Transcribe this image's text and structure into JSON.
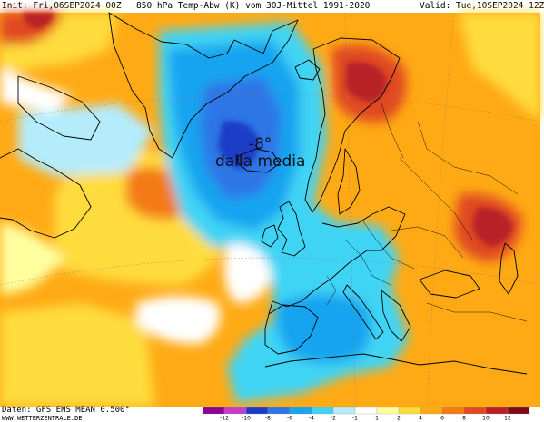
{
  "header": {
    "init_text": "Init: Fri,06SEP2024 00Z",
    "title_text": "850 hPa Temp-Abw (K) vom 30J-Mittel 1991-2020",
    "valid_text": "Valid: Tue,10SEP2024 12Z"
  },
  "overlay": {
    "anomaly_text": "-8°",
    "reference_text": "dalla media"
  },
  "footer": {
    "data_text": "Daten: GFS ENS MEAN 0.500°",
    "site_text": "WWW.WETTERZENTRALE.DE"
  },
  "colorbar": {
    "labels": [
      "-12",
      "-10",
      "-8",
      "-6",
      "-4",
      "-2",
      "-1",
      "1",
      "2",
      "4",
      "6",
      "8",
      "10",
      "12"
    ],
    "colors": {
      "bin_0": "#8c0094",
      "bin_1": "#c43ccc",
      "bin_2": "#1c3cc8",
      "bin_3": "#2e74e6",
      "bin_4": "#18a4f0",
      "bin_5": "#40d4f4",
      "bin_6": "#b4ecfc",
      "bin_7": "#ffffff",
      "bin_8": "#ffffa0",
      "bin_9": "#ffdc3c",
      "bin_10": "#ffaa14",
      "bin_11": "#f47a12",
      "bin_12": "#e04a20",
      "bin_13": "#b82026",
      "bin_14": "#7a0c1c"
    }
  },
  "map": {
    "region": "North Atlantic and Europe",
    "contour_color": "#000000"
  }
}
